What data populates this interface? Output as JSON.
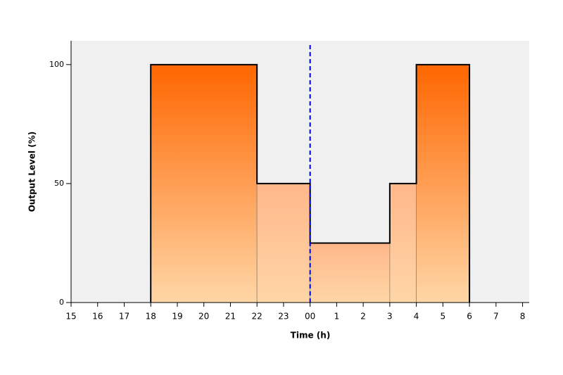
{
  "chart_data": {
    "type": "step-area",
    "xlabel": "Time (h)",
    "ylabel": "Output Level (%)",
    "x": [
      18,
      22,
      24,
      27,
      28
    ],
    "x_end": [
      22,
      24,
      27,
      28,
      30
    ],
    "values": [
      100,
      50,
      25,
      50,
      100
    ],
    "styles": [
      "gradient",
      "flat",
      "flat",
      "flat",
      "gradient"
    ],
    "color": "#ff6600",
    "mid_color": "#ffb78a",
    "base_color": "#ffd6a6",
    "line_color": "#000000",
    "now_line": 24,
    "now_color": "#0000cc",
    "background": "#f0f0f0",
    "xlim": [
      15,
      32.25
    ],
    "ylim": [
      0,
      110
    ],
    "xticks": [
      15,
      16,
      17,
      18,
      19,
      20,
      21,
      22,
      23,
      {
        "value": 24,
        "label": "00"
      },
      {
        "value": 25,
        "label": "1"
      },
      {
        "value": 26,
        "label": "2"
      },
      {
        "value": 27,
        "label": "3"
      },
      {
        "value": 28,
        "label": "4"
      },
      {
        "value": 29,
        "label": "5"
      },
      {
        "value": 30,
        "label": "6"
      },
      {
        "value": 31,
        "label": "7"
      },
      {
        "value": 32,
        "label": "8"
      }
    ],
    "yticks": [
      0,
      50,
      100
    ]
  }
}
